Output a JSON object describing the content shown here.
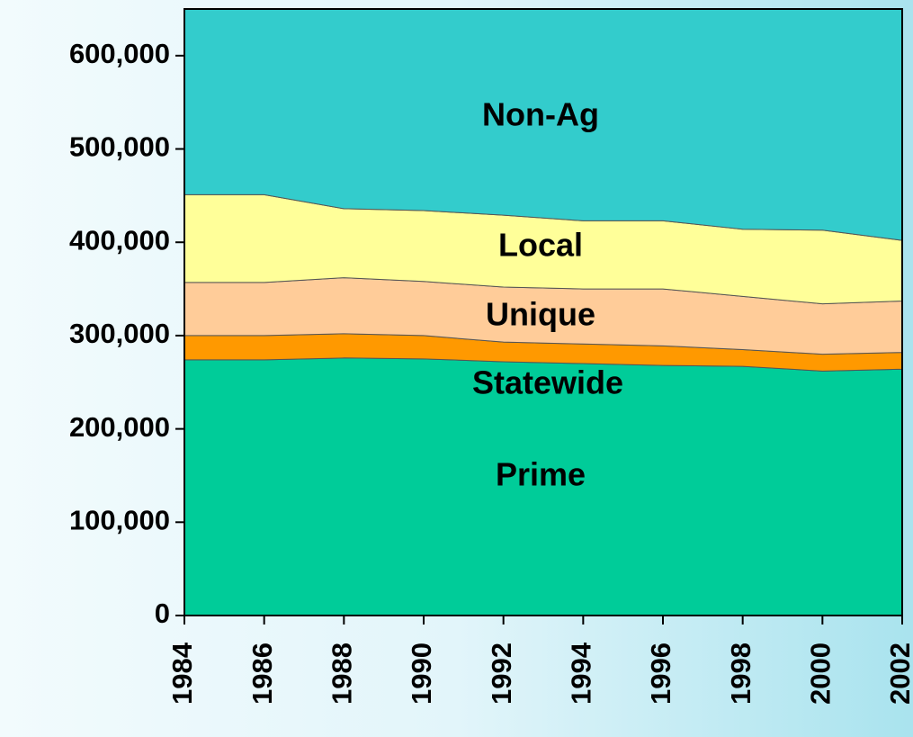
{
  "chart_data": {
    "type": "stacked_area",
    "x": [
      1984,
      1986,
      1988,
      1990,
      1992,
      1994,
      1996,
      1998,
      2000,
      2002
    ],
    "xlim": [
      1984,
      2002
    ],
    "xticks": [
      1984,
      1986,
      1988,
      1990,
      1992,
      1994,
      1996,
      1998,
      2000,
      2002
    ],
    "ylim": [
      0,
      650000
    ],
    "yticks": [
      0,
      {
        "value": 100000,
        "label": "100,000"
      },
      {
        "value": 200000,
        "label": "200,000"
      },
      {
        "value": 300000,
        "label": "300,000"
      },
      {
        "value": 400000,
        "label": "400,000"
      },
      {
        "value": 500000,
        "label": "500,000"
      },
      {
        "value": 600000,
        "label": "600,000"
      }
    ],
    "series": [
      {
        "name": "Prime",
        "color": "#00cc99",
        "values": [
          274000,
          274000,
          276000,
          275000,
          272000,
          270000,
          268000,
          267000,
          262000,
          264000
        ]
      },
      {
        "name": "Statewide",
        "color": "#ff9900",
        "values": [
          26000,
          26000,
          26000,
          25000,
          21000,
          21000,
          21000,
          18000,
          18000,
          18000
        ]
      },
      {
        "name": "Unique",
        "color": "#ffcc99",
        "values": [
          57000,
          57000,
          60000,
          58000,
          59000,
          59000,
          61000,
          57000,
          54000,
          55000
        ]
      },
      {
        "name": "Local",
        "color": "#ffff99",
        "values": [
          94000,
          94000,
          74000,
          76000,
          77000,
          73000,
          73000,
          72000,
          79000,
          65000
        ]
      },
      {
        "name": "Non-Ag",
        "color": "#33cccc",
        "values": [
          199000,
          199000,
          214000,
          216000,
          221000,
          227000,
          227000,
          236000,
          237000,
          248000
        ]
      }
    ]
  }
}
